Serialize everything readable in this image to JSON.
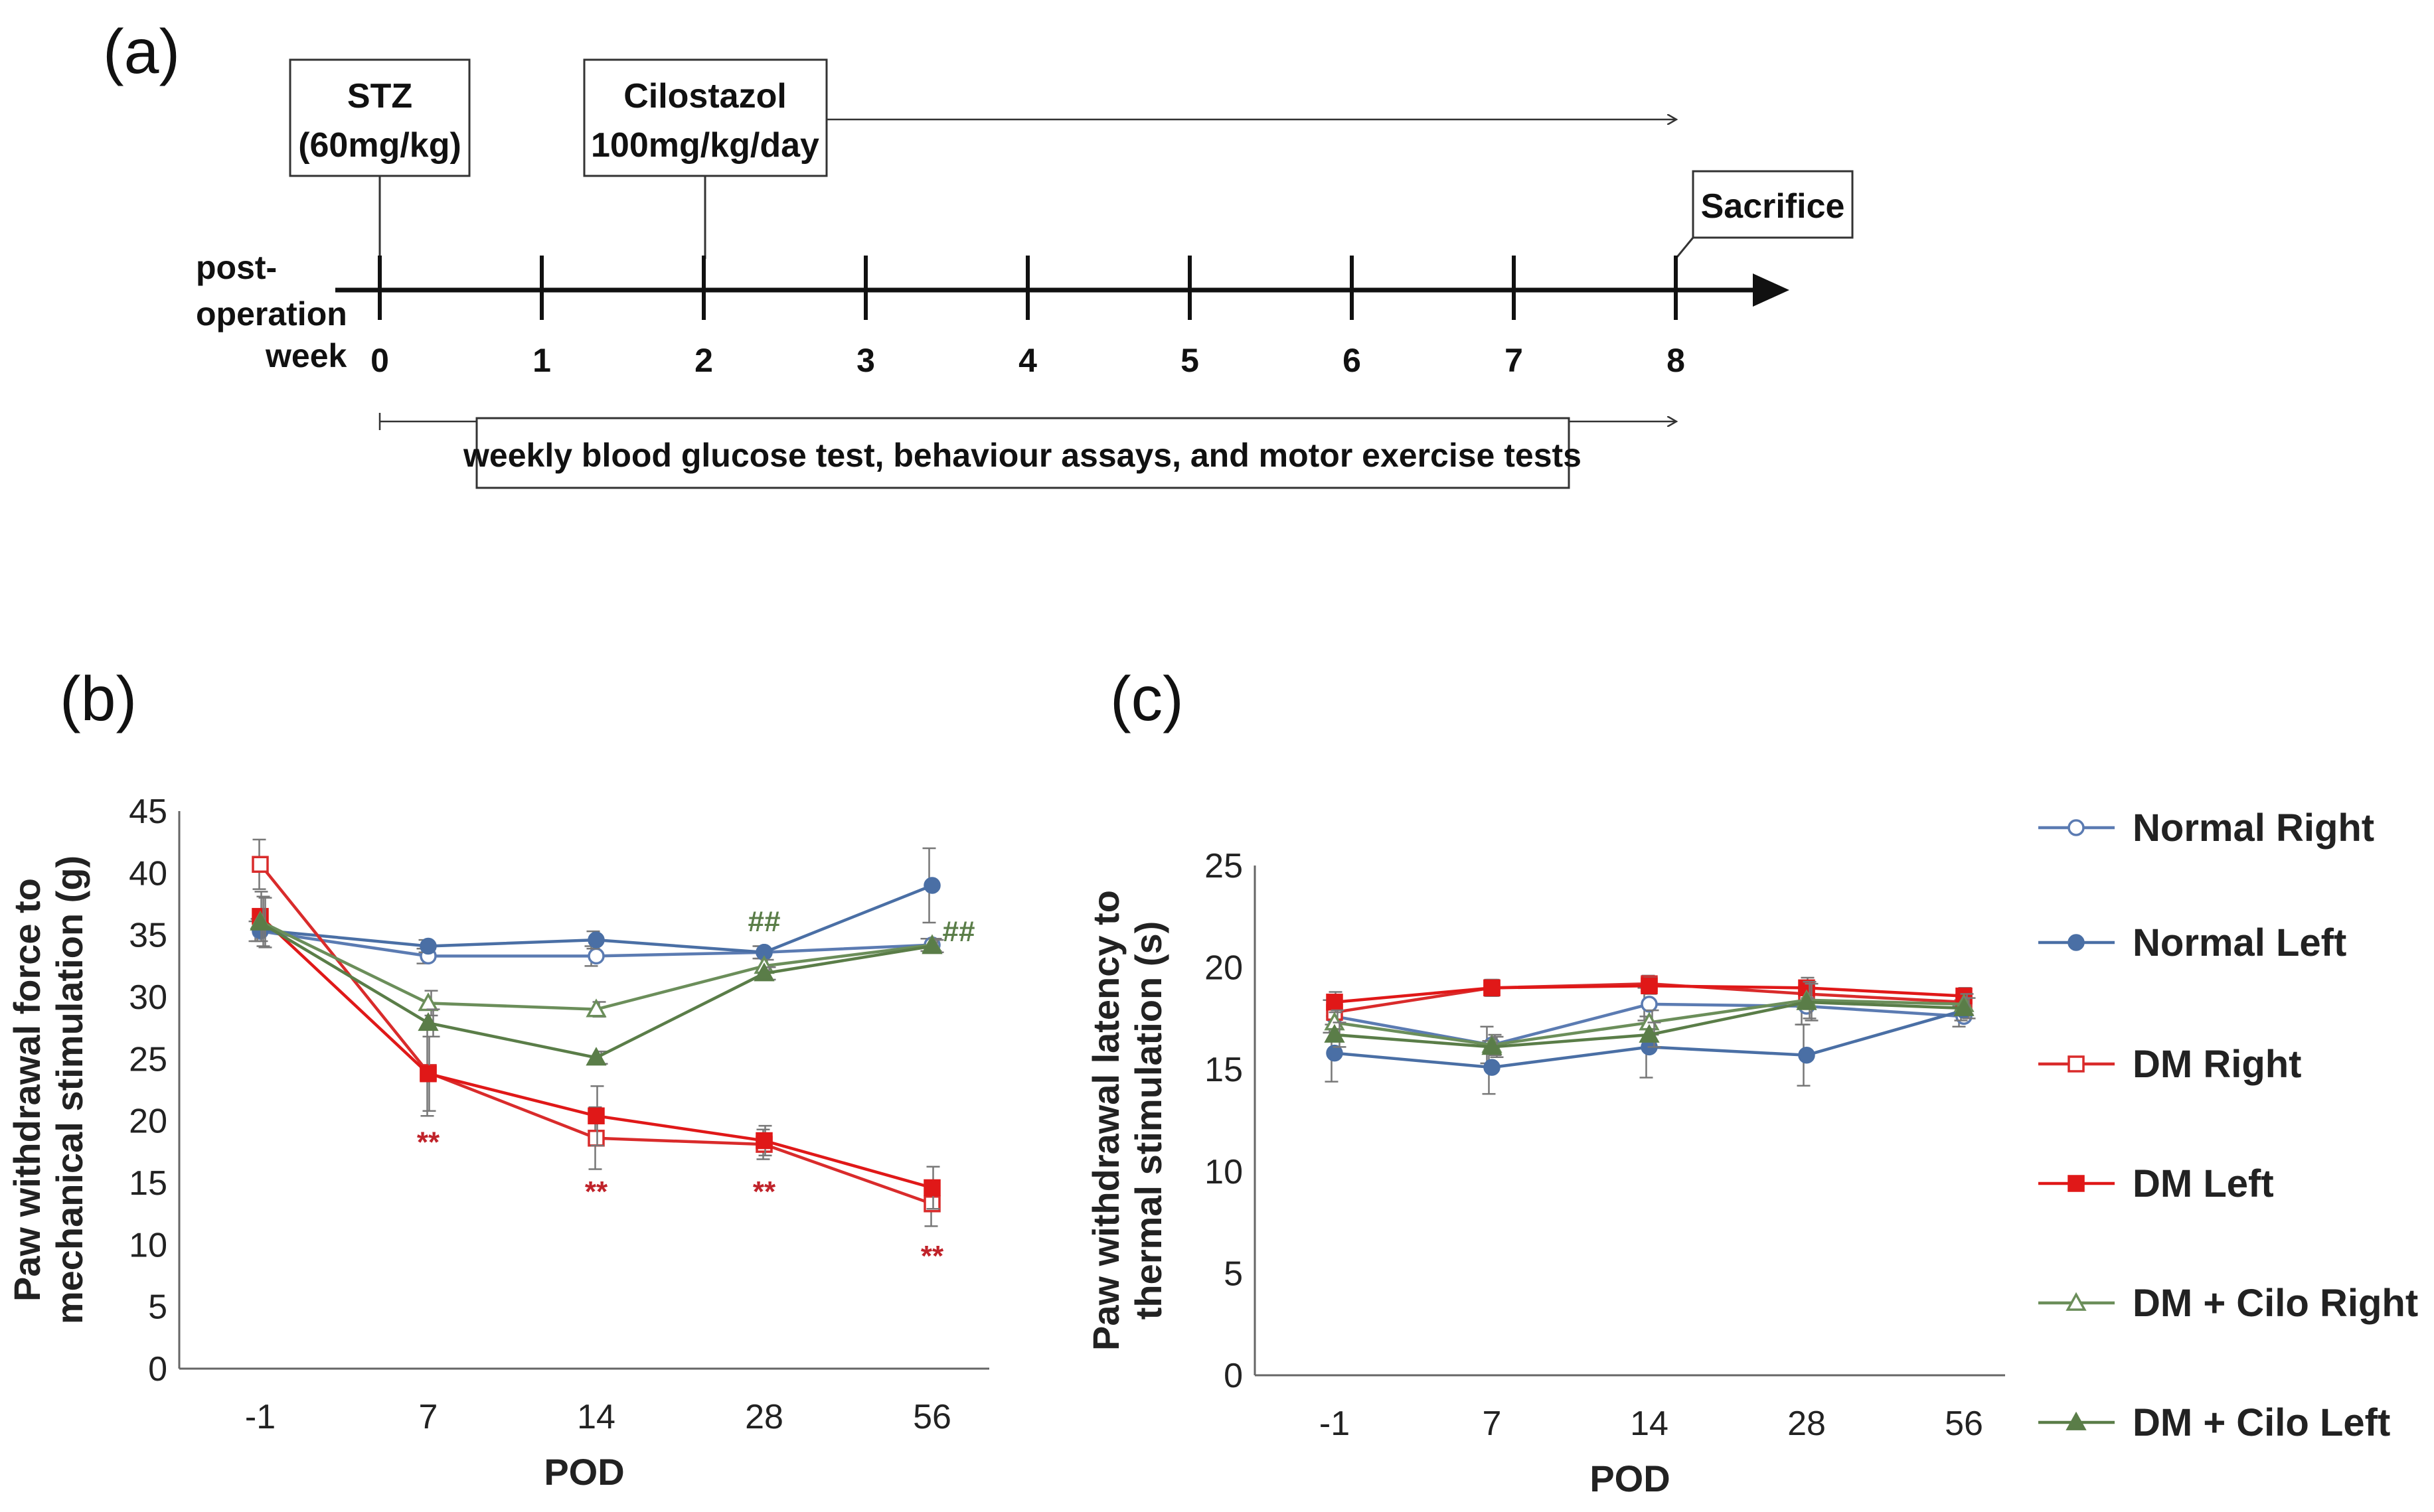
{
  "panels": {
    "a": "(a)",
    "b": "(b)",
    "c": "(c)"
  },
  "timeline": {
    "boxes": {
      "stz": [
        "STZ",
        "(60mg/kg)"
      ],
      "cilostazol": [
        "Cilostazol",
        "100mg/kg/day"
      ],
      "sacrifice": "Sacrifice",
      "weekly": "weekly blood glucose test, behaviour assays, and motor exercise tests"
    },
    "axis_label": [
      "post-",
      "operation",
      "week"
    ],
    "weeks": [
      "0",
      "1",
      "2",
      "3",
      "4",
      "5",
      "6",
      "7",
      "8"
    ]
  },
  "legend": [
    {
      "label": "Normal Right",
      "color": "#5b7bb2",
      "marker": "circle-open"
    },
    {
      "label": "Normal Left",
      "color": "#4a6fa5",
      "marker": "circle-filled"
    },
    {
      "label": "DM Right",
      "color": "#d92b2b",
      "marker": "square-open"
    },
    {
      "label": "DM Left",
      "color": "#e01818",
      "marker": "square-filled"
    },
    {
      "label": "DM + Cilo Right",
      "color": "#6b8e5a",
      "marker": "triangle-open"
    },
    {
      "label": "DM + Cilo Left",
      "color": "#5a7d48",
      "marker": "triangle-filled"
    }
  ],
  "chart_data": [
    {
      "type": "line",
      "panel": "b",
      "xlabel": "POD",
      "ylabel": [
        "Paw withdrawal force to",
        "mechanical stimulation (g)"
      ],
      "categories": [
        "-1",
        "7",
        "14",
        "28",
        "56"
      ],
      "yticks": [
        "0",
        "5",
        "10",
        "15",
        "20",
        "25",
        "30",
        "35",
        "40",
        "45"
      ],
      "ylim": [
        0,
        45
      ],
      "series": [
        {
          "name": "Normal Right",
          "values": [
            35.3,
            33.3,
            33.3,
            33.6,
            34.2
          ],
          "errors": [
            0.8,
            0.6,
            0.8,
            0.5,
            0.5
          ]
        },
        {
          "name": "Normal Left",
          "values": [
            35.4,
            34.1,
            34.6,
            33.6,
            39.0
          ],
          "errors": [
            0.9,
            0.5,
            0.7,
            0.5,
            3.0
          ]
        },
        {
          "name": "DM Right",
          "values": [
            40.7,
            23.9,
            18.6,
            18.1,
            13.3
          ],
          "errors": [
            2.0,
            3.5,
            2.5,
            1.2,
            1.8
          ]
        },
        {
          "name": "DM Left",
          "values": [
            36.5,
            23.8,
            20.4,
            18.4,
            14.6
          ],
          "errors": [
            2.0,
            3.0,
            2.4,
            1.2,
            1.7
          ]
        },
        {
          "name": "DM + Cilo Right",
          "values": [
            36.1,
            29.5,
            29.0,
            32.5,
            34.2
          ],
          "errors": [
            2.0,
            1.0,
            0.6,
            0.5,
            0.5
          ]
        },
        {
          "name": "DM + Cilo Left",
          "values": [
            36.0,
            27.9,
            25.1,
            31.9,
            34.1
          ],
          "errors": [
            2.0,
            1.1,
            0.5,
            0.5,
            0.5
          ]
        }
      ],
      "annotations": [
        {
          "text": "**",
          "x": "7",
          "y": 17.5,
          "color": "#c0232a"
        },
        {
          "text": "**",
          "x": "14",
          "y": 13.5,
          "color": "#c0232a"
        },
        {
          "text": "**",
          "x": "28",
          "y": 13.5,
          "color": "#c0232a"
        },
        {
          "text": "**",
          "x": "56",
          "y": 8.3,
          "color": "#c0232a"
        },
        {
          "text": "##",
          "x": "28",
          "y": 35.3,
          "color": "#5a7d48"
        },
        {
          "text": "##",
          "x": "56",
          "y": 34.5,
          "color": "#5a7d48"
        }
      ]
    },
    {
      "type": "line",
      "panel": "c",
      "xlabel": "POD",
      "ylabel": [
        "Paw withdrawal latency to",
        "thermal stimulation (s)"
      ],
      "categories": [
        "-1",
        "7",
        "14",
        "28",
        "56"
      ],
      "yticks": [
        "0",
        "5",
        "10",
        "15",
        "20",
        "25"
      ],
      "ylim": [
        0,
        25
      ],
      "series": [
        {
          "name": "Normal Right",
          "values": [
            17.6,
            16.2,
            18.2,
            18.1,
            17.6
          ],
          "errors": [
            0.8,
            0.9,
            0.8,
            0.9,
            0.5
          ]
        },
        {
          "name": "Normal Left",
          "values": [
            15.8,
            15.1,
            16.1,
            15.7,
            17.9
          ],
          "errors": [
            1.4,
            1.3,
            1.5,
            1.5,
            0.5
          ]
        },
        {
          "name": "DM Right",
          "values": [
            17.8,
            19.0,
            19.2,
            18.7,
            18.3
          ],
          "errors": [
            0.6,
            0.4,
            0.4,
            0.5,
            0.4
          ]
        },
        {
          "name": "DM Left",
          "values": [
            18.3,
            19.0,
            19.1,
            19.0,
            18.6
          ],
          "errors": [
            0.5,
            0.4,
            0.4,
            0.5,
            0.4
          ]
        },
        {
          "name": "DM + Cilo Right",
          "values": [
            17.3,
            16.2,
            17.3,
            18.4,
            18.2
          ],
          "errors": [
            0.6,
            0.5,
            0.6,
            0.9,
            0.5
          ]
        },
        {
          "name": "DM + Cilo Left",
          "values": [
            16.7,
            16.1,
            16.7,
            18.3,
            18.0
          ],
          "errors": [
            0.6,
            0.5,
            0.6,
            0.9,
            0.5
          ]
        }
      ],
      "annotations": []
    }
  ]
}
